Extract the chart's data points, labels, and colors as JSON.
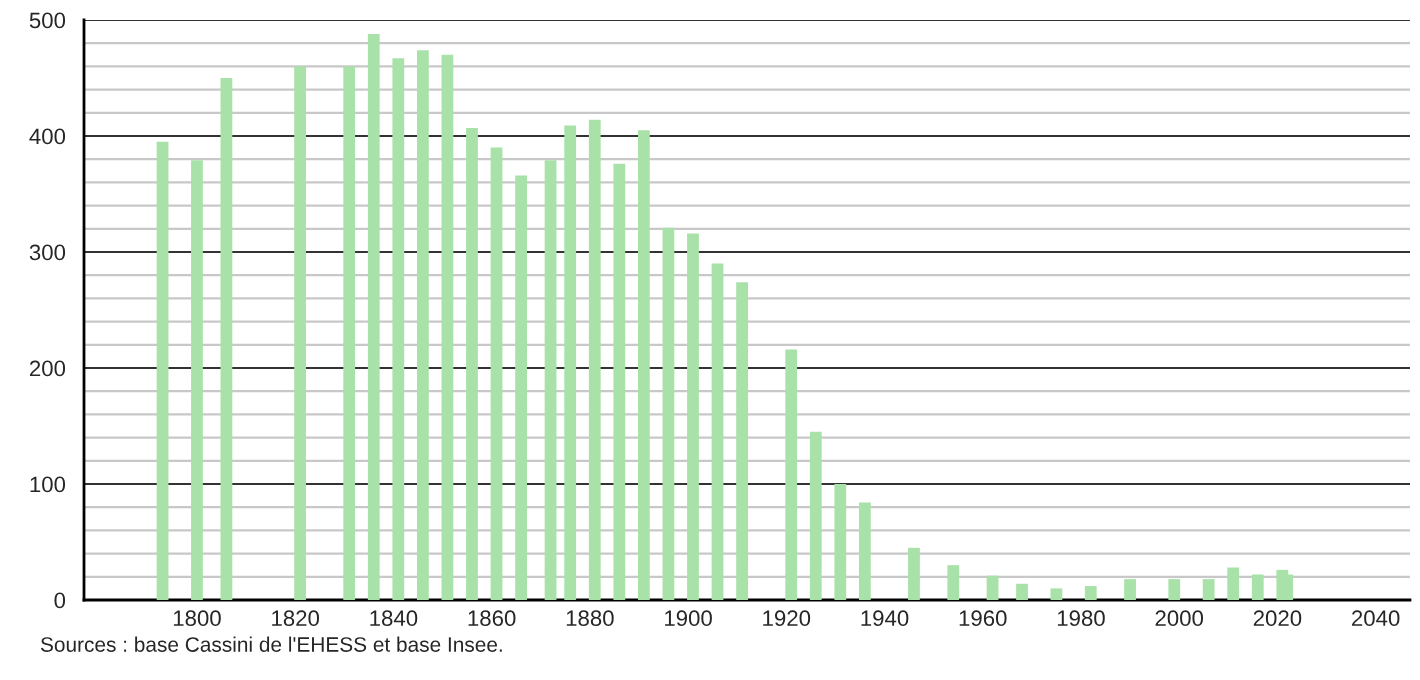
{
  "chart_data": {
    "type": "bar",
    "x": [
      1793,
      1800,
      1806,
      1821,
      1831,
      1836,
      1841,
      1846,
      1851,
      1856,
      1861,
      1866,
      1872,
      1876,
      1881,
      1886,
      1891,
      1896,
      1901,
      1906,
      1911,
      1921,
      1926,
      1931,
      1936,
      1946,
      1954,
      1962,
      1968,
      1975,
      1982,
      1990,
      1999,
      2006,
      2011,
      2016,
      2021,
      2022
    ],
    "values": [
      395,
      379,
      450,
      460,
      460,
      488,
      467,
      474,
      470,
      407,
      390,
      366,
      379,
      409,
      414,
      376,
      405,
      321,
      316,
      290,
      274,
      216,
      145,
      100,
      84,
      45,
      30,
      21,
      14,
      10,
      12,
      18,
      18,
      18,
      28,
      22,
      26,
      22
    ],
    "color": "#a8e2a8",
    "xlim": [
      1777,
      2047
    ],
    "xticks": [
      1800,
      1820,
      1840,
      1860,
      1880,
      1900,
      1920,
      1940,
      1960,
      1980,
      2000,
      2020,
      2040
    ],
    "ylim": [
      0,
      500
    ],
    "yticks": [
      0,
      {
        "value": 20,
        "label": null
      },
      {
        "value": 40,
        "label": null
      },
      {
        "value": 60,
        "label": null
      },
      {
        "value": 80,
        "label": null
      },
      100,
      {
        "value": 120,
        "label": null
      },
      {
        "value": 140,
        "label": null
      },
      {
        "value": 160,
        "label": null
      },
      {
        "value": 180,
        "label": null
      },
      200,
      {
        "value": 220,
        "label": null
      },
      {
        "value": 240,
        "label": null
      },
      {
        "value": 260,
        "label": null
      },
      {
        "value": 280,
        "label": null
      },
      300,
      {
        "value": 320,
        "label": null
      },
      {
        "value": 340,
        "label": null
      },
      {
        "value": 360,
        "label": null
      },
      {
        "value": 380,
        "label": null
      },
      400,
      {
        "value": 420,
        "label": null
      },
      {
        "value": 440,
        "label": null
      },
      {
        "value": 460,
        "label": null
      },
      {
        "value": 480,
        "label": null
      },
      500
    ],
    "grid": "y",
    "annotations": [
      "Sources : base Cassini de l'EHESS et base Insee."
    ]
  }
}
